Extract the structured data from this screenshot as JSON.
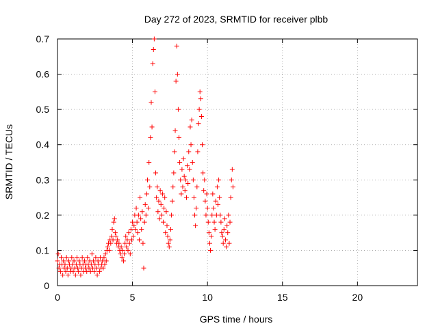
{
  "chart_data": {
    "type": "scatter",
    "title": "Day 272 of 2023, SRMTID for receiver plbb",
    "xlabel": "GPS time / hours",
    "ylabel": "SRMTID / TECUs",
    "xlim": [
      0,
      24
    ],
    "ylim": [
      0,
      0.7
    ],
    "xticks": [
      0,
      5,
      10,
      15,
      20
    ],
    "xtick_labels": [
      "0",
      "5",
      "10",
      "15",
      "20"
    ],
    "yticks": [
      0,
      0.1,
      0.2,
      0.3,
      0.4,
      0.5,
      0.6,
      0.7
    ],
    "ytick_labels": [
      "0",
      "0.1",
      "0.2",
      "0.3",
      "0.4",
      "0.5",
      "0.6",
      "0.7"
    ],
    "grid": true,
    "marker": "+",
    "marker_color": "#ff0000",
    "series": [
      {
        "name": "plbb",
        "points": [
          [
            0.0,
            0.07
          ],
          [
            0.05,
            0.09
          ],
          [
            0.1,
            0.05
          ],
          [
            0.15,
            0.06
          ],
          [
            0.2,
            0.04
          ],
          [
            0.25,
            0.08
          ],
          [
            0.3,
            0.06
          ],
          [
            0.35,
            0.03
          ],
          [
            0.4,
            0.07
          ],
          [
            0.45,
            0.05
          ],
          [
            0.5,
            0.06
          ],
          [
            0.55,
            0.04
          ],
          [
            0.6,
            0.08
          ],
          [
            0.65,
            0.05
          ],
          [
            0.7,
            0.03
          ],
          [
            0.75,
            0.07
          ],
          [
            0.8,
            0.06
          ],
          [
            0.85,
            0.04
          ],
          [
            0.9,
            0.05
          ],
          [
            0.95,
            0.08
          ],
          [
            1.0,
            0.06
          ],
          [
            1.05,
            0.04
          ],
          [
            1.1,
            0.07
          ],
          [
            1.15,
            0.05
          ],
          [
            1.2,
            0.03
          ],
          [
            1.25,
            0.06
          ],
          [
            1.3,
            0.08
          ],
          [
            1.35,
            0.05
          ],
          [
            1.4,
            0.04
          ],
          [
            1.45,
            0.07
          ],
          [
            1.5,
            0.06
          ],
          [
            1.55,
            0.03
          ],
          [
            1.6,
            0.05
          ],
          [
            1.65,
            0.08
          ],
          [
            1.7,
            0.06
          ],
          [
            1.75,
            0.04
          ],
          [
            1.8,
            0.07
          ],
          [
            1.85,
            0.05
          ],
          [
            1.9,
            0.06
          ],
          [
            1.95,
            0.04
          ],
          [
            2.0,
            0.08
          ],
          [
            2.05,
            0.06
          ],
          [
            2.1,
            0.05
          ],
          [
            2.15,
            0.07
          ],
          [
            2.2,
            0.04
          ],
          [
            2.25,
            0.06
          ],
          [
            2.3,
            0.09
          ],
          [
            2.35,
            0.05
          ],
          [
            2.4,
            0.07
          ],
          [
            2.45,
            0.04
          ],
          [
            2.5,
            0.06
          ],
          [
            2.55,
            0.08
          ],
          [
            2.6,
            0.05
          ],
          [
            2.65,
            0.03
          ],
          [
            2.7,
            0.07
          ],
          [
            2.75,
            0.06
          ],
          [
            2.8,
            0.04
          ],
          [
            2.85,
            0.08
          ],
          [
            2.9,
            0.05
          ],
          [
            2.95,
            0.06
          ],
          [
            3.0,
            0.07
          ],
          [
            3.05,
            0.05
          ],
          [
            3.1,
            0.08
          ],
          [
            3.15,
            0.06
          ],
          [
            3.2,
            0.09
          ],
          [
            3.25,
            0.07
          ],
          [
            3.3,
            0.1
          ],
          [
            3.35,
            0.11
          ],
          [
            3.4,
            0.12
          ],
          [
            3.45,
            0.1
          ],
          [
            3.5,
            0.13
          ],
          [
            3.55,
            0.12
          ],
          [
            3.6,
            0.14
          ],
          [
            3.65,
            0.16
          ],
          [
            3.7,
            0.13
          ],
          [
            3.75,
            0.18
          ],
          [
            3.8,
            0.19
          ],
          [
            3.85,
            0.15
          ],
          [
            3.9,
            0.14
          ],
          [
            3.95,
            0.12
          ],
          [
            4.0,
            0.13
          ],
          [
            4.05,
            0.11
          ],
          [
            4.1,
            0.12
          ],
          [
            4.15,
            0.1
          ],
          [
            4.2,
            0.09
          ],
          [
            4.25,
            0.11
          ],
          [
            4.3,
            0.08
          ],
          [
            4.35,
            0.1
          ],
          [
            4.4,
            0.07
          ],
          [
            4.45,
            0.09
          ],
          [
            4.5,
            0.12
          ],
          [
            4.55,
            0.14
          ],
          [
            4.6,
            0.11
          ],
          [
            4.65,
            0.13
          ],
          [
            4.7,
            0.1
          ],
          [
            4.75,
            0.15
          ],
          [
            4.8,
            0.12
          ],
          [
            4.85,
            0.09
          ],
          [
            4.9,
            0.16
          ],
          [
            4.95,
            0.13
          ],
          [
            5.0,
            0.18
          ],
          [
            5.05,
            0.14
          ],
          [
            5.1,
            0.17
          ],
          [
            5.15,
            0.2
          ],
          [
            5.2,
            0.16
          ],
          [
            5.25,
            0.22
          ],
          [
            5.3,
            0.18
          ],
          [
            5.35,
            0.15
          ],
          [
            5.4,
            0.2
          ],
          [
            5.45,
            0.13
          ],
          [
            5.5,
            0.25
          ],
          [
            5.55,
            0.19
          ],
          [
            5.6,
            0.16
          ],
          [
            5.65,
            0.21
          ],
          [
            5.7,
            0.12
          ],
          [
            5.75,
            0.05
          ],
          [
            5.8,
            0.18
          ],
          [
            5.85,
            0.23
          ],
          [
            5.9,
            0.2
          ],
          [
            5.95,
            0.26
          ],
          [
            6.0,
            0.3
          ],
          [
            6.05,
            0.22
          ],
          [
            6.1,
            0.35
          ],
          [
            6.15,
            0.28
          ],
          [
            6.2,
            0.42
          ],
          [
            6.25,
            0.52
          ],
          [
            6.3,
            0.45
          ],
          [
            6.35,
            0.63
          ],
          [
            6.4,
            0.67
          ],
          [
            6.45,
            0.7
          ],
          [
            6.5,
            0.55
          ],
          [
            6.55,
            0.32
          ],
          [
            6.6,
            0.25
          ],
          [
            6.65,
            0.28
          ],
          [
            6.7,
            0.21
          ],
          [
            6.75,
            0.24
          ],
          [
            6.8,
            0.19
          ],
          [
            6.85,
            0.27
          ],
          [
            6.9,
            0.23
          ],
          [
            6.95,
            0.2
          ],
          [
            7.0,
            0.26
          ],
          [
            7.05,
            0.18
          ],
          [
            7.1,
            0.22
          ],
          [
            7.15,
            0.25
          ],
          [
            7.2,
            0.15
          ],
          [
            7.25,
            0.21
          ],
          [
            7.3,
            0.17
          ],
          [
            7.35,
            0.14
          ],
          [
            7.4,
            0.12
          ],
          [
            7.45,
            0.11
          ],
          [
            7.5,
            0.13
          ],
          [
            7.55,
            0.16
          ],
          [
            7.6,
            0.2
          ],
          [
            7.65,
            0.24
          ],
          [
            7.7,
            0.28
          ],
          [
            7.75,
            0.32
          ],
          [
            7.8,
            0.38
          ],
          [
            7.85,
            0.44
          ],
          [
            7.9,
            0.58
          ],
          [
            7.95,
            0.68
          ],
          [
            8.0,
            0.6
          ],
          [
            8.05,
            0.5
          ],
          [
            8.1,
            0.42
          ],
          [
            8.15,
            0.35
          ],
          [
            8.2,
            0.3
          ],
          [
            8.25,
            0.26
          ],
          [
            8.3,
            0.33
          ],
          [
            8.35,
            0.28
          ],
          [
            8.4,
            0.36
          ],
          [
            8.45,
            0.31
          ],
          [
            8.5,
            0.27
          ],
          [
            8.55,
            0.3
          ],
          [
            8.6,
            0.25
          ],
          [
            8.65,
            0.34
          ],
          [
            8.7,
            0.29
          ],
          [
            8.75,
            0.38
          ],
          [
            8.8,
            0.33
          ],
          [
            8.85,
            0.45
          ],
          [
            8.9,
            0.4
          ],
          [
            8.95,
            0.47
          ],
          [
            9.0,
            0.35
          ],
          [
            9.05,
            0.3
          ],
          [
            9.1,
            0.25
          ],
          [
            9.15,
            0.2
          ],
          [
            9.2,
            0.17
          ],
          [
            9.25,
            0.22
          ],
          [
            9.3,
            0.28
          ],
          [
            9.35,
            0.38
          ],
          [
            9.4,
            0.46
          ],
          [
            9.45,
            0.5
          ],
          [
            9.5,
            0.55
          ],
          [
            9.55,
            0.53
          ],
          [
            9.6,
            0.48
          ],
          [
            9.65,
            0.4
          ],
          [
            9.7,
            0.32
          ],
          [
            9.75,
            0.27
          ],
          [
            9.8,
            0.3
          ],
          [
            9.85,
            0.24
          ],
          [
            9.9,
            0.2
          ],
          [
            9.95,
            0.26
          ],
          [
            10.0,
            0.22
          ],
          [
            10.05,
            0.18
          ],
          [
            10.1,
            0.15
          ],
          [
            10.15,
            0.12
          ],
          [
            10.2,
            0.1
          ],
          [
            10.25,
            0.14
          ],
          [
            10.3,
            0.2
          ],
          [
            10.35,
            0.26
          ],
          [
            10.4,
            0.22
          ],
          [
            10.45,
            0.18
          ],
          [
            10.5,
            0.16
          ],
          [
            10.55,
            0.24
          ],
          [
            10.6,
            0.2
          ],
          [
            10.65,
            0.28
          ],
          [
            10.7,
            0.23
          ],
          [
            10.75,
            0.3
          ],
          [
            10.8,
            0.25
          ],
          [
            10.85,
            0.2
          ],
          [
            10.9,
            0.18
          ],
          [
            10.95,
            0.15
          ],
          [
            11.0,
            0.14
          ],
          [
            11.05,
            0.12
          ],
          [
            11.1,
            0.16
          ],
          [
            11.15,
            0.19
          ],
          [
            11.2,
            0.13
          ],
          [
            11.25,
            0.11
          ],
          [
            11.3,
            0.17
          ],
          [
            11.35,
            0.15
          ],
          [
            11.4,
            0.2
          ],
          [
            11.45,
            0.12
          ],
          [
            11.5,
            0.18
          ],
          [
            11.55,
            0.25
          ],
          [
            11.6,
            0.3
          ],
          [
            11.65,
            0.33
          ],
          [
            11.7,
            0.28
          ]
        ]
      }
    ]
  }
}
